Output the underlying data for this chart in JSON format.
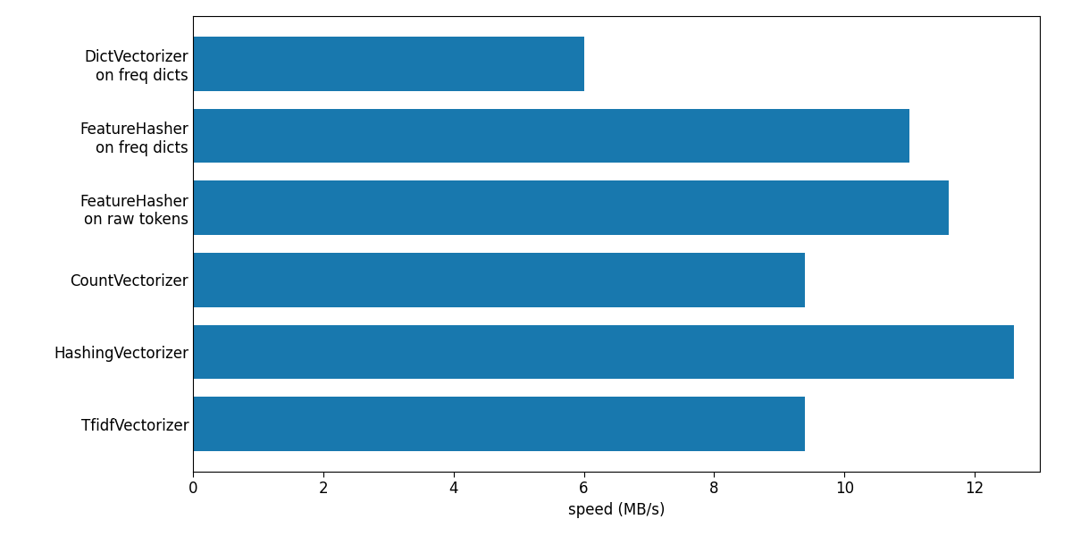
{
  "categories": [
    "TfidfVectorizer",
    "HashingVectorizer",
    "CountVectorizer",
    "FeatureHasher\non raw tokens",
    "FeatureHasher\non freq dicts",
    "DictVectorizer\non freq dicts"
  ],
  "values": [
    9.4,
    12.6,
    9.4,
    11.6,
    11.0,
    6.0
  ],
  "bar_color": "#1878ae",
  "xlabel": "speed (MB/s)",
  "xlim": [
    0,
    13.0
  ],
  "background_color": "#ffffff",
  "spine_color": "#000000",
  "tick_label_fontsize": 12,
  "axis_label_fontsize": 12,
  "bar_height": 0.75
}
